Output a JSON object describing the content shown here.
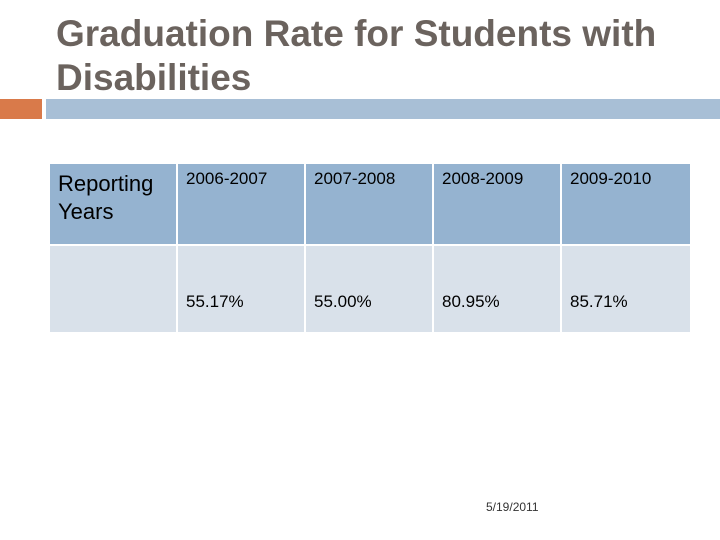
{
  "slide": {
    "title": "Graduation Rate for Students with Disabilities",
    "date": "5/19/2011"
  },
  "table": {
    "header_label": "Reporting Years",
    "years": [
      "2006-2007",
      "2007-2008",
      "2008-2009",
      "2009-2010"
    ],
    "row_label": "",
    "rates": [
      "55.17%",
      "55.00%",
      "80.95%",
      "85.71%"
    ]
  },
  "colors": {
    "title": "#6b635e",
    "accent_orange": "#d97a4a",
    "accent_blue": "#a8bfd6",
    "header_fill": "#95b3d0",
    "row_fill": "#d9e1ea"
  }
}
